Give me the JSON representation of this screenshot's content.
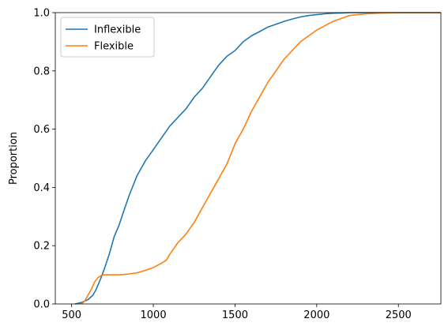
{
  "chart_data": {
    "type": "line",
    "title": "",
    "xlabel": "",
    "ylabel": "Proportion",
    "xlim": [
      400,
      2760
    ],
    "ylim": [
      0,
      1
    ],
    "xticks": [
      500,
      1000,
      1500,
      2000,
      2500
    ],
    "yticks": [
      0.0,
      0.2,
      0.4,
      0.6,
      0.8,
      1.0
    ],
    "xtick_labels": [
      "500",
      "1000",
      "1500",
      "2000",
      "2500"
    ],
    "ytick_labels": [
      "0.0",
      "0.2",
      "0.4",
      "0.6",
      "0.8",
      "1.0"
    ],
    "grid": false,
    "legend_position": "top-left",
    "series": [
      {
        "name": "Inflexible",
        "color": "#1f77b4",
        "x": [
          520,
          560,
          600,
          630,
          650,
          680,
          700,
          730,
          760,
          790,
          820,
          850,
          900,
          950,
          1000,
          1050,
          1100,
          1150,
          1200,
          1250,
          1300,
          1350,
          1400,
          1450,
          1500,
          1550,
          1600,
          1650,
          1700,
          1750,
          1800,
          1850,
          1900,
          1950,
          2000,
          2050,
          2100,
          2150,
          2200,
          2300,
          2500
        ],
        "y": [
          0.0,
          0.005,
          0.015,
          0.03,
          0.05,
          0.09,
          0.12,
          0.17,
          0.23,
          0.27,
          0.32,
          0.37,
          0.44,
          0.49,
          0.53,
          0.57,
          0.61,
          0.64,
          0.67,
          0.71,
          0.74,
          0.78,
          0.82,
          0.85,
          0.87,
          0.9,
          0.92,
          0.935,
          0.95,
          0.96,
          0.97,
          0.978,
          0.985,
          0.99,
          0.993,
          0.996,
          0.998,
          0.999,
          1.0,
          1.0,
          1.0
        ]
      },
      {
        "name": "Flexible",
        "color": "#ff7f0e",
        "x": [
          560,
          580,
          600,
          620,
          640,
          660,
          680,
          700,
          750,
          800,
          850,
          900,
          950,
          1000,
          1050,
          1080,
          1100,
          1150,
          1200,
          1250,
          1300,
          1350,
          1400,
          1450,
          1500,
          1550,
          1600,
          1650,
          1700,
          1750,
          1800,
          1850,
          1900,
          1950,
          2000,
          2050,
          2100,
          2150,
          2200,
          2250,
          2300,
          2400,
          2500
        ],
        "y": [
          0.0,
          0.01,
          0.03,
          0.05,
          0.075,
          0.09,
          0.097,
          0.1,
          0.1,
          0.1,
          0.103,
          0.107,
          0.115,
          0.125,
          0.14,
          0.15,
          0.17,
          0.21,
          0.24,
          0.28,
          0.33,
          0.38,
          0.43,
          0.48,
          0.55,
          0.6,
          0.66,
          0.71,
          0.76,
          0.8,
          0.84,
          0.87,
          0.9,
          0.92,
          0.94,
          0.955,
          0.97,
          0.98,
          0.99,
          0.993,
          0.996,
          0.999,
          1.0
        ]
      }
    ]
  }
}
